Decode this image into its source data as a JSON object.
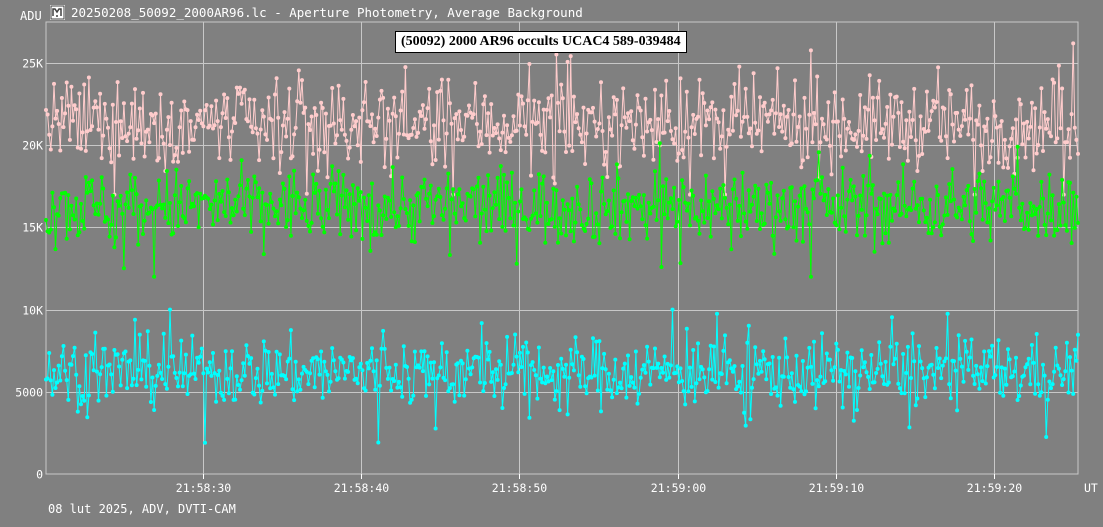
{
  "window": {
    "title": "20250208_50092_2000AR96.lc - Aperture Photometry, Average Background",
    "icon": "lightcurve-app-icon"
  },
  "chart_data": {
    "type": "line",
    "title": "(50092) 2000 AR96 occults UCAC4 589-039484",
    "ylabel": "ADU",
    "xlabel": "UT",
    "ylim": [
      0,
      27500
    ],
    "y_ticks": [
      {
        "value": 0,
        "label": "0"
      },
      {
        "value": 5000,
        "label": "5000"
      },
      {
        "value": 10000,
        "label": "10K"
      },
      {
        "value": 15000,
        "label": "15K"
      },
      {
        "value": 20000,
        "label": "20K"
      },
      {
        "value": 25000,
        "label": "25K"
      }
    ],
    "x_range_seconds": [
      21.6,
      86.8
    ],
    "x_ticks": [
      {
        "t": 31.5,
        "label": "21:58:30"
      },
      {
        "t": 41.5,
        "label": "21:58:40"
      },
      {
        "t": 51.5,
        "label": "21:58:50"
      },
      {
        "t": 61.5,
        "label": "21:59:00"
      },
      {
        "t": 71.5,
        "label": "21:59:10"
      },
      {
        "t": 81.5,
        "label": "21:59:20"
      }
    ],
    "grid": true,
    "series": [
      {
        "color": "#ffcccc",
        "mean": 21300,
        "spread": 1500,
        "min": 17000,
        "max": 26200
      },
      {
        "color": "#00ff00",
        "mean": 16300,
        "spread": 1300,
        "min": 12000,
        "max": 20600
      },
      {
        "color": "#00ffff",
        "mean": 6200,
        "spread": 1200,
        "min": 1900,
        "max": 10000
      }
    ],
    "n_points": 650
  },
  "footer": "08 lut 2025, ADV, DVTI-CAM"
}
